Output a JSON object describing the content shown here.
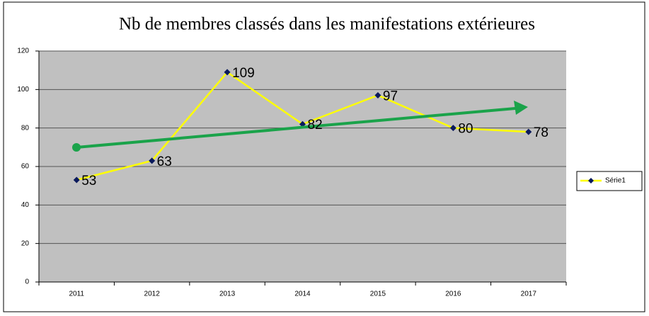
{
  "chart_data": {
    "type": "line",
    "title": "Nb de membres classés dans les manifestations extérieures",
    "categories": [
      "2011",
      "2012",
      "2013",
      "2014",
      "2015",
      "2016",
      "2017"
    ],
    "series": [
      {
        "name": "Série1",
        "color": "#ffff00",
        "marker_color": "#0a1a5c",
        "values": [
          53,
          63,
          109,
          82,
          97,
          80,
          78
        ]
      }
    ],
    "ylim": [
      0,
      120
    ],
    "yticks": [
      0,
      20,
      40,
      60,
      80,
      100,
      120
    ],
    "grid": true,
    "legend": "right"
  }
}
